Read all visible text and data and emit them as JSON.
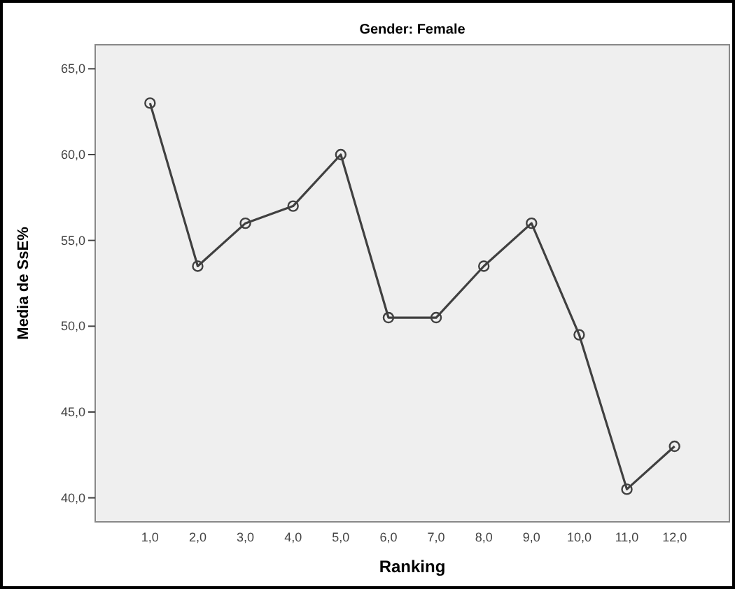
{
  "chart_data": {
    "type": "line",
    "title": "Gender: Female",
    "xlabel": "Ranking",
    "ylabel": "Media de SsE%",
    "x": [
      1,
      2,
      3,
      4,
      5,
      6,
      7,
      8,
      9,
      10,
      11,
      12
    ],
    "series": [
      {
        "color": "#404040",
        "values": [
          63,
          53.5,
          56,
          57,
          60,
          50.5,
          50.5,
          53.5,
          56,
          49.5,
          40.5,
          43
        ]
      }
    ],
    "xlim": [
      -0.15,
      13.15
    ],
    "ylim": [
      38.6,
      66.4
    ],
    "xticks": [
      {
        "value": 1,
        "label": "1,0"
      },
      {
        "value": 2,
        "label": "2,0"
      },
      {
        "value": 3,
        "label": "3,0"
      },
      {
        "value": 4,
        "label": "4,0"
      },
      {
        "value": 5,
        "label": "5,0"
      },
      {
        "value": 6,
        "label": "6,0"
      },
      {
        "value": 7,
        "label": "7,0"
      },
      {
        "value": 8,
        "label": "8,0"
      },
      {
        "value": 9,
        "label": "9,0"
      },
      {
        "value": 10,
        "label": "10,0"
      },
      {
        "value": 11,
        "label": "11,0"
      },
      {
        "value": 12,
        "label": "12,0"
      }
    ],
    "yticks": [
      {
        "value": 40,
        "label": "40,0"
      },
      {
        "value": 45,
        "label": "45,0"
      },
      {
        "value": 50,
        "label": "50,0"
      },
      {
        "value": 55,
        "label": "55,0"
      },
      {
        "value": 60,
        "label": "60,0"
      },
      {
        "value": 65,
        "label": "65,0"
      }
    ],
    "grid": false,
    "marker": "circle",
    "line_style": "solid"
  }
}
